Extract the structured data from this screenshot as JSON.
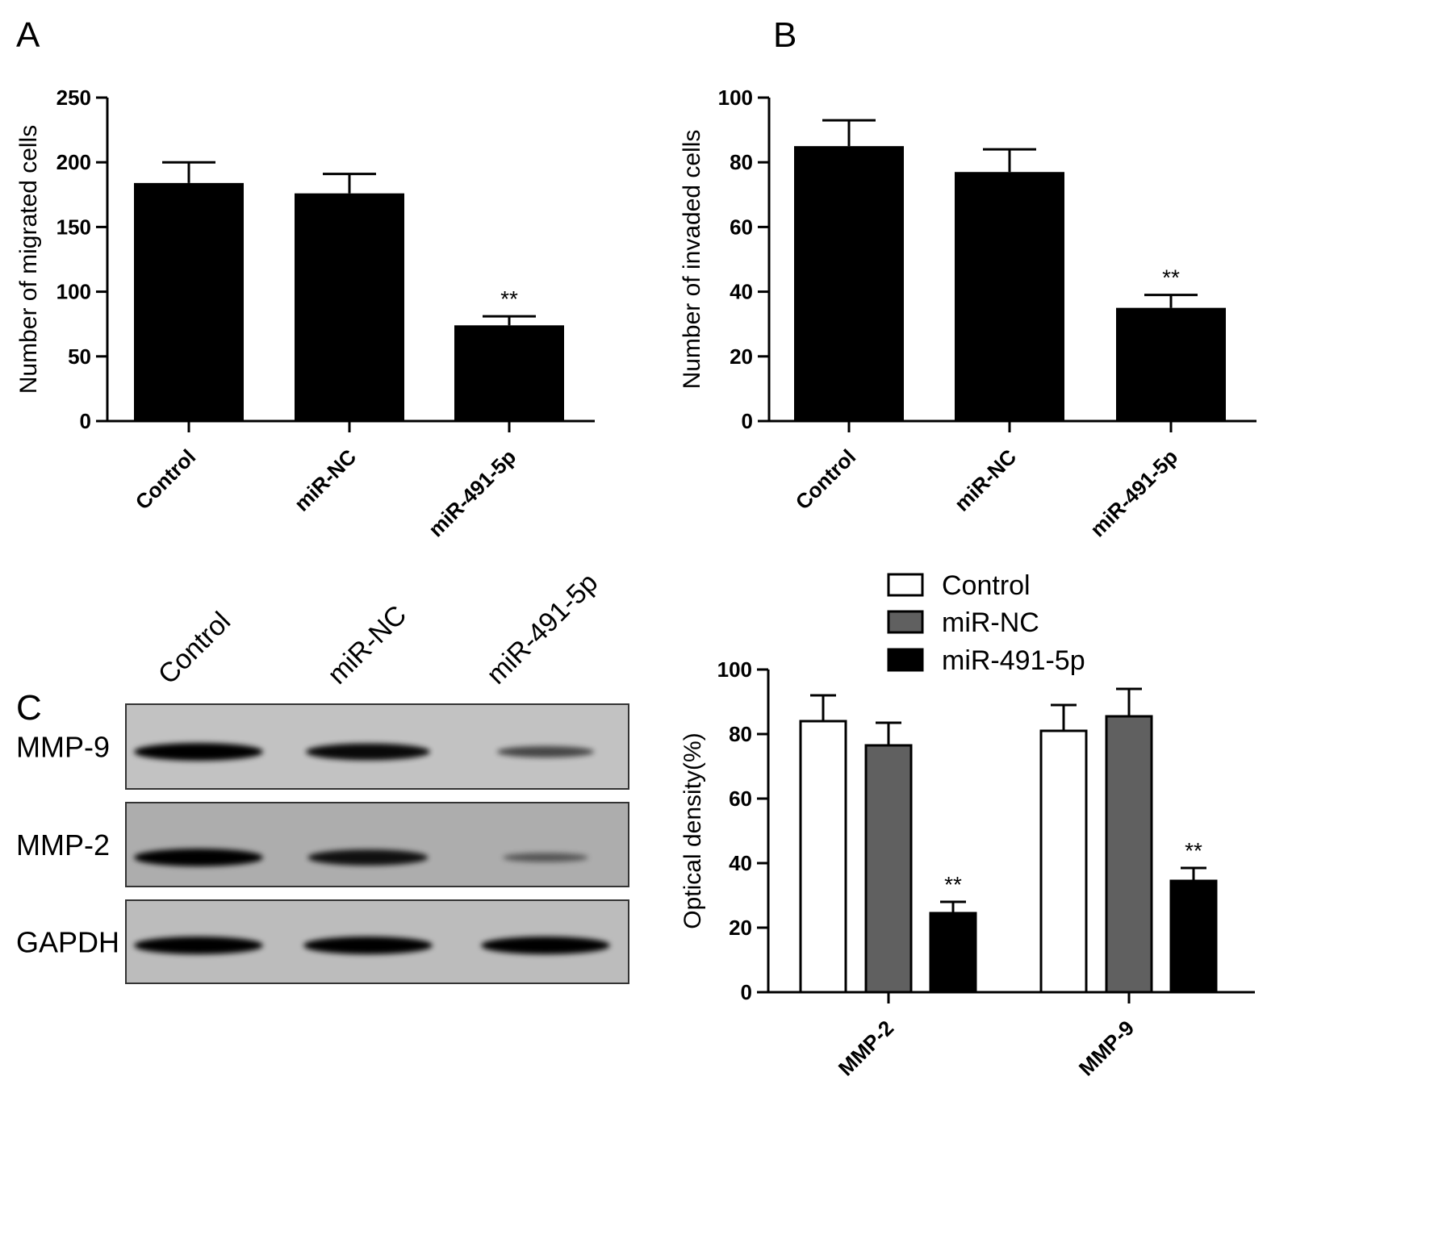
{
  "panels": {
    "a": "A",
    "b": "B",
    "c": "C"
  },
  "chart_data": [
    {
      "type": "bar",
      "panel": "A",
      "categories": [
        "Control",
        "miR-NC",
        "miR-491-5p"
      ],
      "values": [
        184,
        176,
        74
      ],
      "errors": [
        16,
        15,
        7
      ],
      "significance": [
        "",
        "",
        "**"
      ],
      "ylabel": "Number of  migrated cells",
      "ylim": [
        0,
        250
      ],
      "yticks": [
        0,
        50,
        100,
        150,
        200,
        250
      ],
      "colors": [
        "#000000",
        "#000000",
        "#000000"
      ]
    },
    {
      "type": "bar",
      "panel": "B",
      "categories": [
        "Control",
        "miR-NC",
        "miR-491-5p"
      ],
      "values": [
        85,
        77,
        35
      ],
      "errors": [
        8,
        7,
        4
      ],
      "significance": [
        "",
        "",
        "**"
      ],
      "ylabel": "Number of invaded cells",
      "ylim": [
        0,
        100
      ],
      "yticks": [
        0,
        20,
        40,
        60,
        80,
        100
      ],
      "colors": [
        "#000000",
        "#000000",
        "#000000"
      ]
    },
    {
      "type": "bar",
      "panel": "C",
      "categories": [
        "MMP-2",
        "MMP-9"
      ],
      "series": [
        {
          "name": "Control",
          "values": [
            84,
            81
          ],
          "errors": [
            8,
            8
          ],
          "color": "#ffffff"
        },
        {
          "name": "miR-NC",
          "values": [
            76.5,
            85.5
          ],
          "errors": [
            7,
            8.5
          ],
          "color": "#606060"
        },
        {
          "name": "miR-491-5p",
          "values": [
            24.5,
            34.5
          ],
          "errors": [
            3.5,
            4
          ],
          "color": "#000000"
        }
      ],
      "significance": [
        [
          "",
          "",
          "**"
        ],
        [
          "",
          "",
          "**"
        ]
      ],
      "ylabel": "Optical density(%)",
      "ylim": [
        0,
        100
      ],
      "yticks": [
        0,
        20,
        40,
        60,
        80,
        100
      ],
      "legend": "top"
    }
  ],
  "blot": {
    "lanes": [
      "Control",
      "miR-NC",
      "miR-491-5p"
    ],
    "rows": [
      {
        "label": "MMP-9",
        "intensities": [
          1.0,
          0.92,
          0.45
        ]
      },
      {
        "label": "MMP-2",
        "intensities": [
          1.0,
          0.85,
          0.25
        ]
      },
      {
        "label": "GAPDH",
        "intensities": [
          1.0,
          1.0,
          1.0
        ]
      }
    ]
  }
}
